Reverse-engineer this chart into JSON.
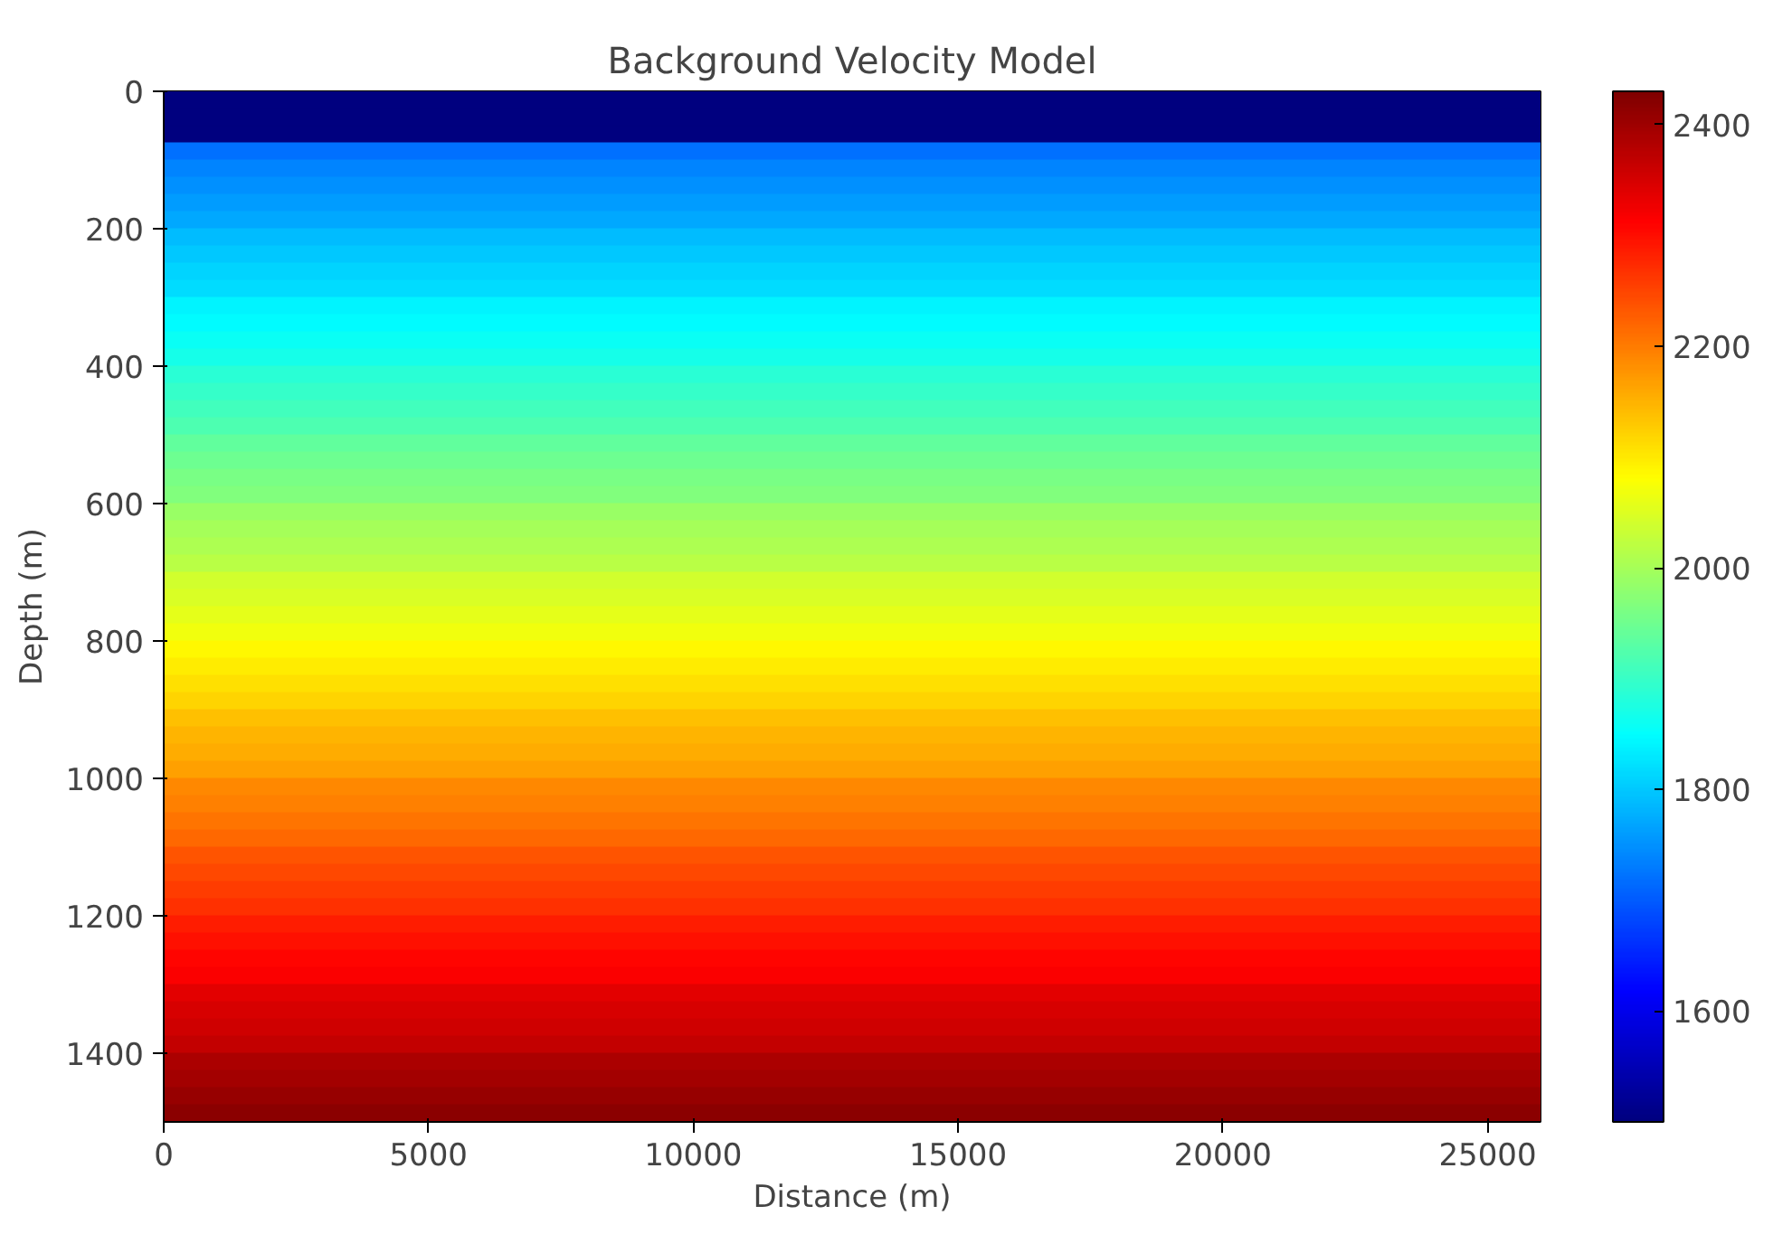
{
  "chart_data": {
    "type": "heatmap",
    "title": "Background Velocity Model",
    "xlabel": "Distance (m)",
    "ylabel": "Depth (m)",
    "xlim": [
      0,
      26000
    ],
    "ylim": [
      1500,
      0
    ],
    "xticks": [
      0,
      5000,
      10000,
      15000,
      20000,
      25000
    ],
    "yticks": [
      0,
      200,
      400,
      600,
      800,
      1000,
      1200,
      1400
    ],
    "clim": [
      1500,
      2430
    ],
    "cticks": [
      1600,
      1800,
      2000,
      2200,
      2400
    ],
    "cells": [
      [
        1500
      ],
      [
        1500
      ],
      [
        1500
      ],
      [
        1720
      ],
      [
        1740
      ],
      [
        1750
      ],
      [
        1760
      ],
      [
        1770
      ],
      [
        1790
      ],
      [
        1800
      ],
      [
        1810
      ],
      [
        1820
      ],
      [
        1840
      ],
      [
        1850
      ],
      [
        1860
      ],
      [
        1870
      ],
      [
        1890
      ],
      [
        1900
      ],
      [
        1910
      ],
      [
        1920
      ],
      [
        1940
      ],
      [
        1950
      ],
      [
        1960
      ],
      [
        1970
      ],
      [
        1990
      ],
      [
        2000
      ],
      [
        2010
      ],
      [
        2020
      ],
      [
        2040
      ],
      [
        2050
      ],
      [
        2060
      ],
      [
        2070
      ],
      [
        2090
      ],
      [
        2100
      ],
      [
        2110
      ],
      [
        2120
      ],
      [
        2140
      ],
      [
        2150
      ],
      [
        2160
      ],
      [
        2170
      ],
      [
        2190
      ],
      [
        2200
      ],
      [
        2210
      ],
      [
        2220
      ],
      [
        2240
      ],
      [
        2250
      ],
      [
        2260
      ],
      [
        2270
      ],
      [
        2290
      ],
      [
        2300
      ],
      [
        2310
      ],
      [
        2320
      ],
      [
        2340
      ],
      [
        2350
      ],
      [
        2360
      ],
      [
        2370
      ],
      [
        2390
      ],
      [
        2400
      ],
      [
        2410
      ],
      [
        2420
      ]
    ]
  }
}
